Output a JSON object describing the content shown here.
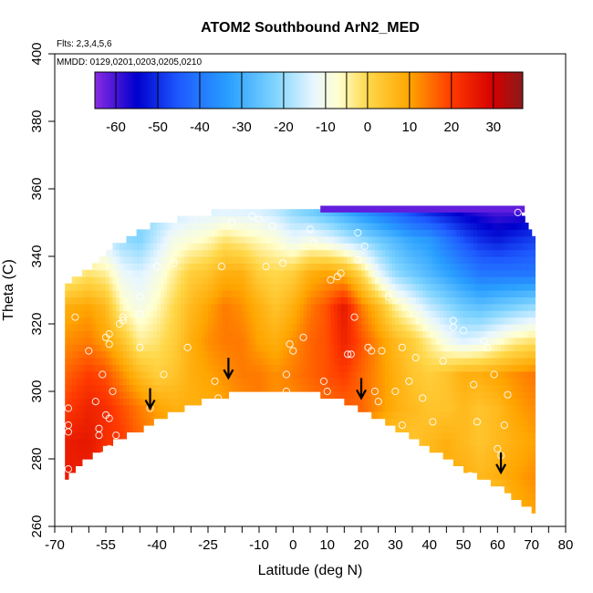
{
  "chart_data": {
    "type": "heatmap",
    "title": "ATOM2 Southbound ArN2_MED",
    "notes": [
      "Flts: 2,3,4,5,6",
      "MMDD: 0129,0201,0203,0205,0210"
    ],
    "xlabel": "Latitude (deg N)",
    "ylabel": "Theta (C)",
    "xlim": [
      -70,
      80
    ],
    "ylim": [
      260,
      400
    ],
    "x_ticks": [
      -70,
      -55,
      -40,
      -25,
      -10,
      0,
      10,
      20,
      30,
      40,
      50,
      60,
      70,
      80
    ],
    "x_minor_step": 5,
    "y_ticks": [
      260,
      280,
      300,
      320,
      340,
      360,
      380,
      400
    ],
    "colorbar": {
      "range": [
        -65,
        37
      ],
      "ticks": [
        -60,
        -50,
        -40,
        -30,
        -20,
        -10,
        0,
        10,
        20,
        30
      ],
      "stops": [
        {
          "value": -65,
          "color": "#8a2be2"
        },
        {
          "value": -55,
          "color": "#0000cd"
        },
        {
          "value": -45,
          "color": "#1e5aff"
        },
        {
          "value": -33,
          "color": "#2aa0ff"
        },
        {
          "value": -22,
          "color": "#7fd4ff"
        },
        {
          "value": -13,
          "color": "#e8f6ff"
        },
        {
          "value": -7,
          "color": "#ffffd0"
        },
        {
          "value": 0,
          "color": "#ffd84a"
        },
        {
          "value": 10,
          "color": "#ffa500"
        },
        {
          "value": 20,
          "color": "#ff3a00"
        },
        {
          "value": 30,
          "color": "#d40000"
        },
        {
          "value": 37,
          "color": "#8b1a1a"
        }
      ]
    },
    "field": {
      "lat": [
        -67,
        -60,
        -55,
        -50,
        -45,
        -40,
        -35,
        -30,
        -25,
        -20,
        -15,
        -10,
        -5,
        0,
        5,
        10,
        15,
        20,
        25,
        30,
        35,
        40,
        45,
        50,
        55,
        60,
        65,
        70
      ],
      "theta_floor": [
        275,
        281,
        284,
        287,
        289,
        292,
        294,
        296,
        298,
        299,
        300,
        301,
        301,
        300,
        300,
        298,
        297,
        294,
        292,
        289,
        286,
        283,
        280,
        277,
        274,
        272,
        268,
        265
      ],
      "theta_top": [
        331,
        336,
        341,
        344,
        347,
        349,
        350,
        351,
        352,
        353,
        353,
        353,
        353,
        353,
        354,
        354,
        354,
        354,
        354,
        354,
        354,
        354,
        354,
        354,
        354,
        354,
        354,
        346
      ],
      "levels": [
        265,
        275,
        285,
        295,
        305,
        315,
        325,
        335,
        345,
        355
      ],
      "values": [
        [
          0,
          0,
          0,
          0,
          0,
          0,
          0,
          0,
          0,
          0,
          0,
          0,
          0,
          0,
          0,
          0,
          0,
          0,
          0,
          0,
          0,
          0,
          0,
          0,
          0,
          0,
          8,
          10
        ],
        [
          25,
          24,
          20,
          18,
          14,
          12,
          10,
          8,
          6,
          6,
          6,
          6,
          6,
          6,
          6,
          6,
          6,
          6,
          6,
          6,
          6,
          6,
          8,
          8,
          6,
          8,
          10,
          12
        ],
        [
          25,
          26,
          22,
          20,
          16,
          14,
          12,
          10,
          8,
          6,
          6,
          6,
          6,
          6,
          6,
          6,
          6,
          6,
          5,
          4,
          4,
          6,
          8,
          6,
          4,
          6,
          8,
          10
        ],
        [
          20,
          24,
          22,
          18,
          14,
          10,
          8,
          8,
          8,
          10,
          12,
          14,
          12,
          12,
          14,
          15,
          16,
          16,
          12,
          8,
          6,
          4,
          4,
          6,
          4,
          6,
          10,
          12
        ],
        [
          16,
          20,
          18,
          12,
          6,
          2,
          4,
          8,
          10,
          12,
          14,
          14,
          12,
          14,
          16,
          18,
          20,
          16,
          12,
          8,
          4,
          2,
          4,
          8,
          8,
          10,
          12,
          14
        ],
        [
          12,
          14,
          10,
          4,
          -4,
          -2,
          2,
          8,
          12,
          14,
          14,
          10,
          8,
          12,
          16,
          18,
          24,
          18,
          12,
          6,
          2,
          -4,
          -10,
          -14,
          -12,
          -8,
          -4,
          -2
        ],
        [
          8,
          10,
          6,
          -6,
          -10,
          -6,
          0,
          6,
          10,
          14,
          12,
          8,
          4,
          8,
          14,
          18,
          26,
          14,
          6,
          -4,
          -10,
          -16,
          -20,
          -24,
          -26,
          -24,
          -22,
          -20
        ],
        [
          -6,
          -2,
          -4,
          -12,
          -14,
          -10,
          -4,
          2,
          4,
          8,
          8,
          2,
          0,
          2,
          8,
          10,
          8,
          0,
          -12,
          -20,
          -24,
          -28,
          -32,
          -36,
          -40,
          -40,
          -40,
          -40
        ],
        [
          -20,
          -16,
          -16,
          -20,
          -22,
          -16,
          -10,
          -8,
          -6,
          -2,
          -4,
          -6,
          -8,
          -12,
          -10,
          -12,
          -16,
          -20,
          -24,
          -28,
          -32,
          -34,
          -40,
          -46,
          -50,
          -52,
          -50,
          -48
        ],
        [
          -20,
          -20,
          -20,
          -20,
          -22,
          -20,
          -18,
          -16,
          -16,
          -16,
          -16,
          -16,
          -18,
          -22,
          -26,
          -30,
          -34,
          -38,
          -42,
          -46,
          -50,
          -54,
          -56,
          -58,
          -60,
          -62,
          -62,
          -60
        ]
      ],
      "top_cap": {
        "lat_start": 8,
        "lat_end": 68,
        "theta": 355
      }
    },
    "samples": [
      [
        -66,
        290
      ],
      [
        -66,
        295
      ],
      [
        -66,
        288
      ],
      [
        -66,
        277
      ],
      [
        -64,
        322
      ],
      [
        -60,
        312
      ],
      [
        -58,
        297
      ],
      [
        -57,
        287
      ],
      [
        -57,
        289
      ],
      [
        -56,
        305
      ],
      [
        -56,
        281
      ],
      [
        -55,
        293
      ],
      [
        -55,
        316
      ],
      [
        -54,
        317
      ],
      [
        -54,
        314
      ],
      [
        -54,
        292
      ],
      [
        -54,
        283
      ],
      [
        -53,
        300
      ],
      [
        -52,
        287
      ],
      [
        -51,
        320
      ],
      [
        -50,
        321
      ],
      [
        -50,
        322
      ],
      [
        -45,
        328
      ],
      [
        -45,
        323
      ],
      [
        -45,
        313
      ],
      [
        -42,
        295
      ],
      [
        -40,
        337
      ],
      [
        -38,
        305
      ],
      [
        -35,
        338
      ],
      [
        -31,
        313
      ],
      [
        -23,
        303
      ],
      [
        -22,
        298
      ],
      [
        -21,
        337
      ],
      [
        -18,
        350
      ],
      [
        -12,
        352
      ],
      [
        -10,
        351
      ],
      [
        -8,
        337
      ],
      [
        -6,
        349
      ],
      [
        -3,
        338
      ],
      [
        -2,
        305
      ],
      [
        -2,
        300
      ],
      [
        -1,
        314
      ],
      [
        0,
        312
      ],
      [
        3,
        316
      ],
      [
        5,
        348
      ],
      [
        6,
        344
      ],
      [
        9,
        303
      ],
      [
        10,
        300
      ],
      [
        11,
        333
      ],
      [
        13,
        334
      ],
      [
        14,
        335
      ],
      [
        16,
        311
      ],
      [
        17,
        311
      ],
      [
        18,
        322
      ],
      [
        19,
        339
      ],
      [
        19,
        347
      ],
      [
        21,
        343
      ],
      [
        22,
        313
      ],
      [
        23,
        312
      ],
      [
        24,
        300
      ],
      [
        25,
        297
      ],
      [
        26,
        312
      ],
      [
        28,
        328
      ],
      [
        30,
        300
      ],
      [
        32,
        313
      ],
      [
        32,
        290
      ],
      [
        34,
        303
      ],
      [
        36,
        310
      ],
      [
        38,
        298
      ],
      [
        38,
        278
      ],
      [
        41,
        291
      ],
      [
        44,
        309
      ],
      [
        47,
        321
      ],
      [
        47,
        319
      ],
      [
        50,
        318
      ],
      [
        52,
        275
      ],
      [
        53,
        302
      ],
      [
        54,
        291
      ],
      [
        56,
        315
      ],
      [
        57,
        313
      ],
      [
        59,
        305
      ],
      [
        60,
        283
      ],
      [
        61,
        281
      ],
      [
        62,
        290
      ],
      [
        63,
        299
      ],
      [
        66,
        353
      ]
    ],
    "arrows": [
      {
        "lat": -42,
        "theta": 295
      },
      {
        "lat": -19,
        "theta": 304
      },
      {
        "lat": 20,
        "theta": 298
      },
      {
        "lat": 61,
        "theta": 276
      }
    ]
  }
}
